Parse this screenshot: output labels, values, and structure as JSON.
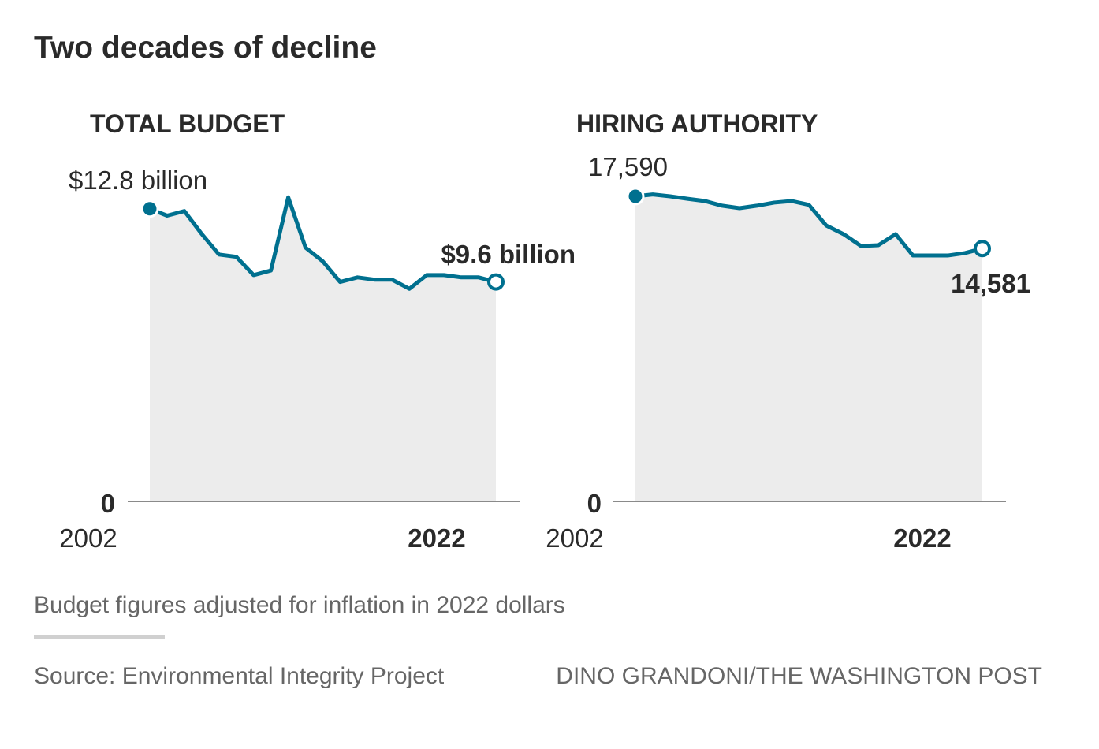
{
  "title": "Two decades of decline",
  "colors": {
    "line": "#00708f",
    "area": "#ececec",
    "axis": "#8a8a8a",
    "text": "#2a2a2a",
    "note": "#666666"
  },
  "chart_data": [
    {
      "type": "area",
      "title": "TOTAL BUDGET",
      "x": [
        2002,
        2003,
        2004,
        2005,
        2006,
        2007,
        2008,
        2009,
        2010,
        2011,
        2012,
        2013,
        2014,
        2015,
        2016,
        2017,
        2018,
        2019,
        2020,
        2021,
        2022
      ],
      "values": [
        12.8,
        12.5,
        12.7,
        11.7,
        10.8,
        10.7,
        9.9,
        10.1,
        13.3,
        11.1,
        10.5,
        9.6,
        9.8,
        9.7,
        9.7,
        9.3,
        9.9,
        9.9,
        9.8,
        9.8,
        9.6
      ],
      "units": "billion dollars",
      "ylim": [
        0,
        15
      ],
      "y_tick_label": "0",
      "x_tick_labels": [
        "2002",
        "2022"
      ],
      "start_label": "$12.8 billion",
      "end_label": "$9.6 billion"
    },
    {
      "type": "area",
      "title": "HIRING AUTHORITY",
      "x": [
        2002,
        2003,
        2004,
        2005,
        2006,
        2007,
        2008,
        2009,
        2010,
        2011,
        2012,
        2013,
        2014,
        2015,
        2016,
        2017,
        2018,
        2019,
        2020,
        2021,
        2022
      ],
      "values": [
        17590,
        17700,
        17590,
        17450,
        17320,
        17050,
        16910,
        17050,
        17230,
        17320,
        17100,
        15910,
        15410,
        14730,
        14770,
        15410,
        14180,
        14180,
        14180,
        14320,
        14581
      ],
      "units": "positions",
      "ylim": [
        0,
        20000
      ],
      "y_tick_label": "0",
      "x_tick_labels": [
        "2002",
        "2022"
      ],
      "start_label": "17,590",
      "end_label": "14,581"
    }
  ],
  "footnote": "Budget figures adjusted for inflation in 2022 dollars",
  "source": "Source: Environmental Integrity Project",
  "credit": "DINO GRANDONI/THE WASHINGTON POST"
}
